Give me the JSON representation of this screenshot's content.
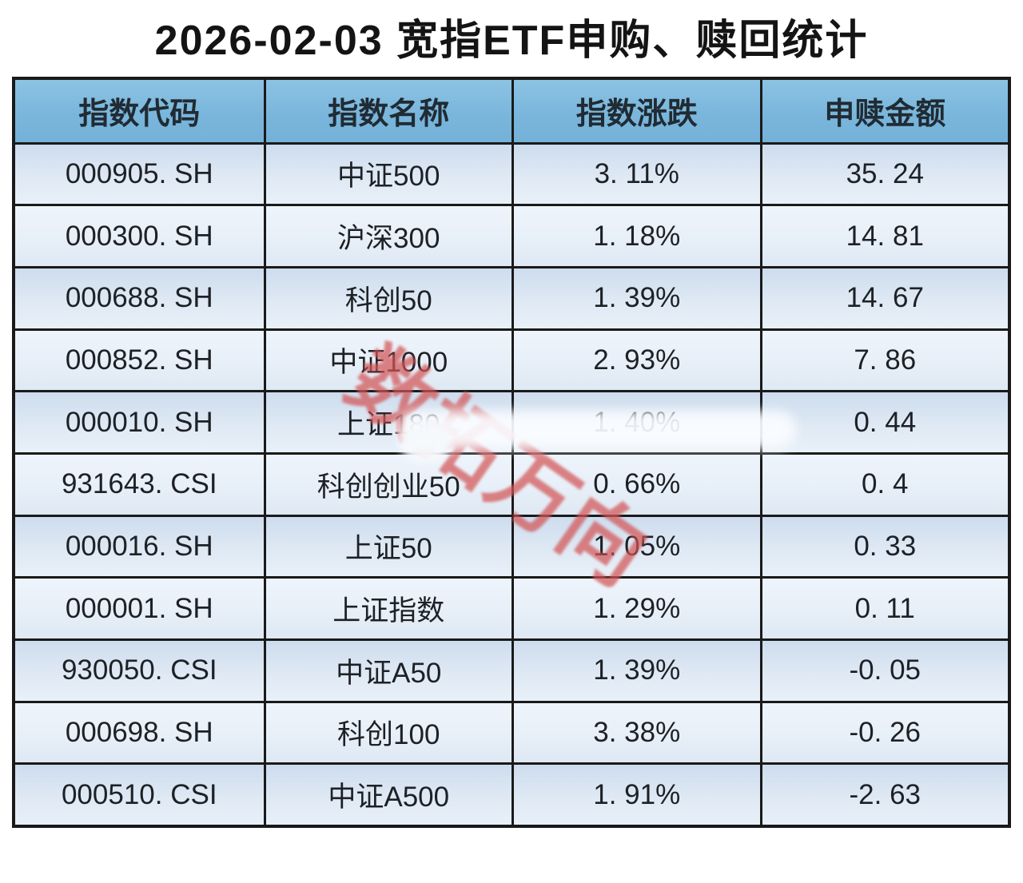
{
  "title": "2026-02-03 宽指ETF申购、赎回统计",
  "watermark_text": "数拓万向",
  "colors": {
    "header_bg": "#7ab6dc",
    "row_odd_bg": "#cddcee",
    "row_even_bg": "#e9f1f9",
    "border": "#1a1a1a",
    "watermark_red": "#d35556",
    "text": "#1d2126"
  },
  "table": {
    "columns": [
      "指数代码",
      "指数名称",
      "指数涨跌",
      "申赎金额"
    ],
    "rows": [
      {
        "code": "000905. SH",
        "name": "中证500",
        "change": "3. 11%",
        "amount": "35. 24"
      },
      {
        "code": "000300. SH",
        "name": "沪深300",
        "change": "1. 18%",
        "amount": "14. 81"
      },
      {
        "code": "000688. SH",
        "name": "科创50",
        "change": "1. 39%",
        "amount": "14. 67"
      },
      {
        "code": "000852. SH",
        "name": "中证1000",
        "change": "2. 93%",
        "amount": "7. 86"
      },
      {
        "code": "000010. SH",
        "name": "上证180",
        "change": "1. 40%",
        "amount": "0. 44"
      },
      {
        "code": "931643. CSI",
        "name": "科创创业50",
        "change": "0. 66%",
        "amount": "0. 4"
      },
      {
        "code": "000016. SH",
        "name": "上证50",
        "change": "1. 05%",
        "amount": "0. 33"
      },
      {
        "code": "000001. SH",
        "name": "上证指数",
        "change": "1. 29%",
        "amount": "0. 11"
      },
      {
        "code": "930050. CSI",
        "name": "中证A50",
        "change": "1. 39%",
        "amount": "-0. 05"
      },
      {
        "code": "000698. SH",
        "name": "科创100",
        "change": "3. 38%",
        "amount": "-0. 26"
      },
      {
        "code": "000510. CSI",
        "name": "中证A500",
        "change": "1. 91%",
        "amount": "-2. 63"
      }
    ]
  },
  "chart_data": {
    "type": "table",
    "title": "2026-02-03 宽指ETF申购、赎回统计",
    "columns": [
      "指数代码",
      "指数名称",
      "指数涨跌",
      "申赎金额"
    ],
    "rows": [
      [
        "000905.SH",
        "中证500",
        "3.11%",
        35.24
      ],
      [
        "000300.SH",
        "沪深300",
        "1.18%",
        14.81
      ],
      [
        "000688.SH",
        "科创50",
        "1.39%",
        14.67
      ],
      [
        "000852.SH",
        "中证1000",
        "2.93%",
        7.86
      ],
      [
        "000010.SH",
        "上证180",
        "1.40%",
        0.44
      ],
      [
        "931643.CSI",
        "科创创业50",
        "0.66%",
        0.4
      ],
      [
        "000016.SH",
        "上证50",
        "1.05%",
        0.33
      ],
      [
        "000001.SH",
        "上证指数",
        "1.29%",
        0.11
      ],
      [
        "930050.CSI",
        "中证A50",
        "1.39%",
        -0.05
      ],
      [
        "000698.SH",
        "科创100",
        "3.38%",
        -0.26
      ],
      [
        "000510.CSI",
        "中证A500",
        "1.91%",
        -2.63
      ]
    ]
  }
}
